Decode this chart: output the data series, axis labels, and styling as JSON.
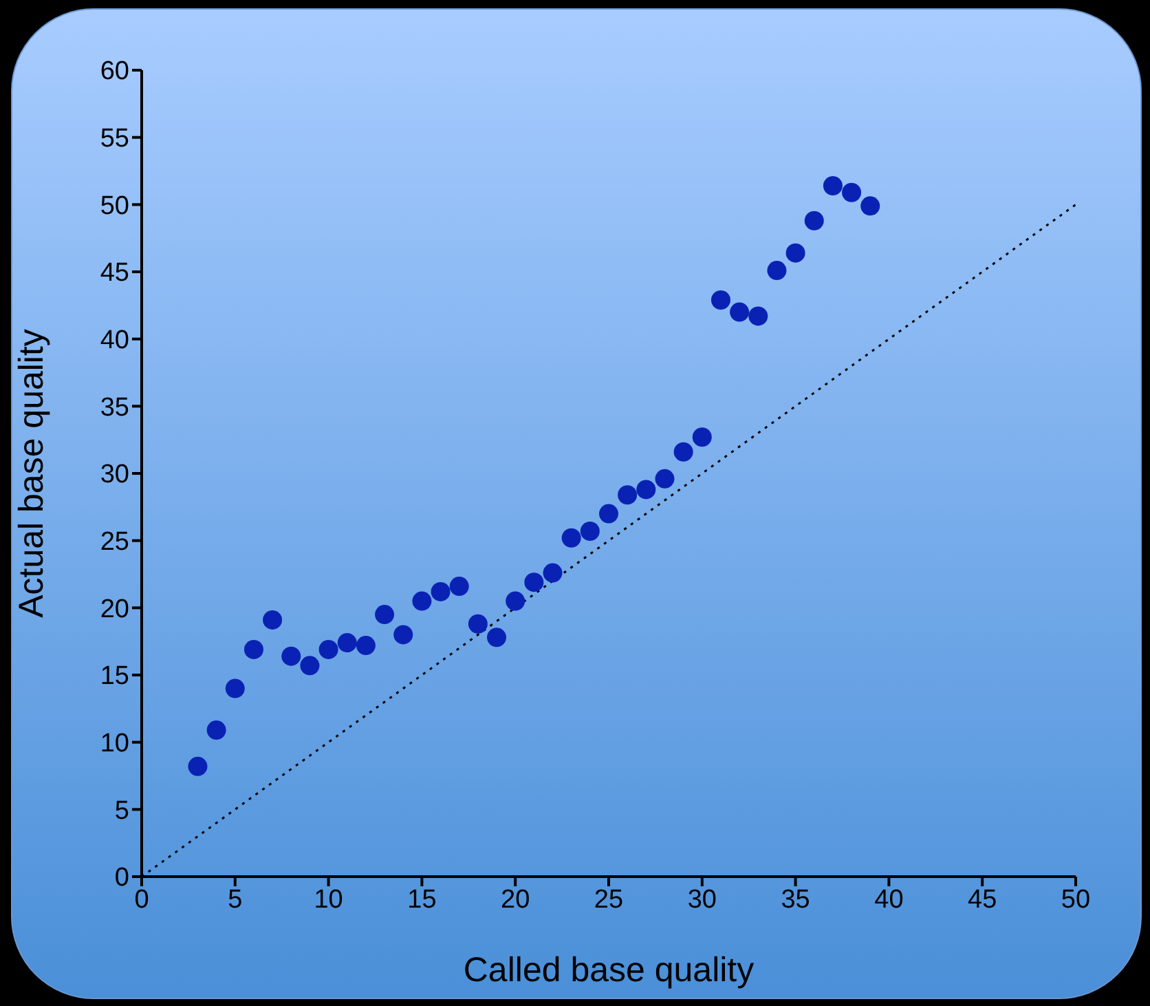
{
  "chart_data": {
    "type": "scatter",
    "xlabel": "Called base quality",
    "ylabel": "Actual base quality",
    "xlim": [
      0,
      50
    ],
    "ylim": [
      0,
      60
    ],
    "xticks": [
      0,
      5,
      10,
      15,
      20,
      25,
      30,
      35,
      40,
      45,
      50
    ],
    "yticks": [
      0,
      5,
      10,
      15,
      20,
      25,
      30,
      35,
      40,
      45,
      50,
      55,
      60
    ],
    "marker": "circle",
    "series": [
      {
        "color": "#0a22b4",
        "x": [
          3,
          4,
          5,
          6,
          7,
          8,
          9,
          10,
          11,
          12,
          13,
          14,
          15,
          16,
          17,
          18,
          19,
          20,
          21,
          22,
          23,
          24,
          25,
          26,
          27,
          28,
          29,
          30,
          31,
          32,
          33,
          34,
          35,
          36,
          37,
          38,
          39
        ],
        "values": [
          8.2,
          10.9,
          14.0,
          16.9,
          19.1,
          16.4,
          15.7,
          16.9,
          17.4,
          17.2,
          19.5,
          18.0,
          20.5,
          21.2,
          21.6,
          18.8,
          17.8,
          20.5,
          21.9,
          22.6,
          25.2,
          25.7,
          27.0,
          28.4,
          28.8,
          29.6,
          31.6,
          32.7,
          42.9,
          42.0,
          41.7,
          45.1,
          46.4,
          48.8,
          51.4,
          50.9,
          49.9
        ]
      },
      {
        "type": "line",
        "color": "#000000",
        "line_style": "dotted",
        "marker": "none",
        "x": [
          0,
          50
        ],
        "values": [
          0,
          50
        ]
      }
    ]
  }
}
